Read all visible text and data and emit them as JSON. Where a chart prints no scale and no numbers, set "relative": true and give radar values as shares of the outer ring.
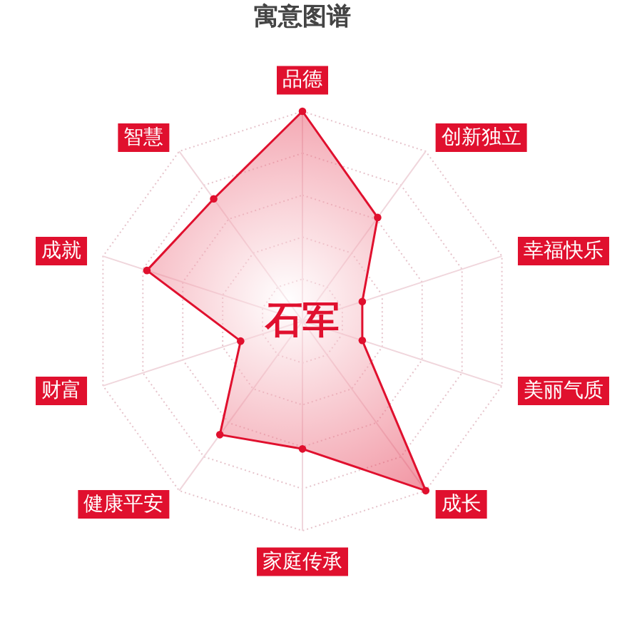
{
  "chart_data": {
    "type": "radar",
    "title": "寓意图谱",
    "categories": [
      "品德",
      "创新独立",
      "幸福快乐",
      "美丽气质",
      "成长",
      "家庭传承",
      "健康平安",
      "财富",
      "成就",
      "智慧"
    ],
    "series": [
      {
        "color": "#e0102e",
        "values": [
          1.0,
          0.61,
          0.3,
          0.3,
          1.0,
          0.61,
          0.67,
          0.31,
          0.78,
          0.72
        ]
      }
    ],
    "relative": true,
    "grid": true,
    "marker": "circle",
    "annotations": [
      "石军"
    ]
  }
}
